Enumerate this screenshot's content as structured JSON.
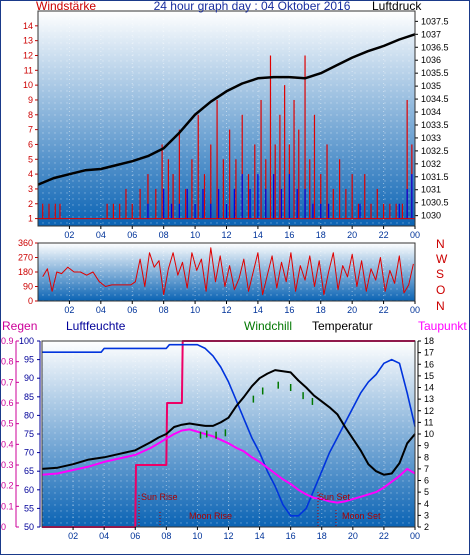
{
  "header": {
    "left_label": "Windstärke",
    "title": "24 hour graph day : 04 Oktober 2016",
    "right_label": "Luftdruck"
  },
  "legend": {
    "regen": "Regen",
    "luftfeuchte": "Luftfeuchte",
    "windchill": "Windchill",
    "temperatur": "Temperatur",
    "taupunkt": "Taupunkt"
  },
  "compass": [
    "N",
    "W",
    "S",
    "O",
    "N"
  ],
  "events": {
    "sun_rise": "Sun Rise",
    "moon_rise": "Moon Rise",
    "sun_set": "Sun Set",
    "moon_set": "Moon Set"
  },
  "colors": {
    "panel_top": "#ffffff",
    "panel_bottom": "#0a63b4",
    "wind_red": "#e00000",
    "gust_blue": "#0000dd",
    "pressure": "#000000",
    "humidity": "#0033dd",
    "windchill": "#007700",
    "temperature": "#000000",
    "dewpoint": "#ff00ff",
    "rain": "#ee0066",
    "left_axis_red": "#cc0000",
    "left_axis_blue": "#000099",
    "right_axis_pink": "#cc0099"
  },
  "chart_data": [
    {
      "type": "line",
      "title": "24 hour graph day : 04 Oktober 2016",
      "x_ticks": [
        "02",
        "04",
        "06",
        "08",
        "10",
        "12",
        "14",
        "16",
        "18",
        "20",
        "22",
        "00"
      ],
      "xlim": [
        0,
        24
      ],
      "y_left_label": "Windstärke",
      "y_left_ticks": [
        1,
        2,
        3,
        4,
        5,
        6,
        7,
        8,
        9,
        10,
        11,
        12,
        13,
        14
      ],
      "ylim_left": [
        0.5,
        15
      ],
      "y_right_label": "Luftdruck",
      "y_right_ticks": [
        1030,
        1030.5,
        1031,
        1031.5,
        1032,
        1032.5,
        1033,
        1033.5,
        1034,
        1034.5,
        1035,
        1035.5,
        1036,
        1036.5,
        1037,
        1037.5
      ],
      "ylim_right": [
        1029.6,
        1037.9
      ],
      "series": [
        {
          "name": "Luftdruck",
          "axis": "right",
          "x": [
            0,
            1,
            2,
            3,
            4,
            5,
            6,
            7,
            8,
            9,
            10,
            11,
            12,
            13,
            14,
            15,
            16,
            17,
            18,
            19,
            20,
            21,
            22,
            23,
            24
          ],
          "y": [
            1031.2,
            1031.45,
            1031.6,
            1031.75,
            1031.8,
            1031.95,
            1032.1,
            1032.3,
            1032.6,
            1033.2,
            1033.9,
            1034.4,
            1034.8,
            1035.1,
            1035.3,
            1035.35,
            1035.35,
            1035.3,
            1035.5,
            1035.8,
            1036.1,
            1036.35,
            1036.55,
            1036.8,
            1037.0
          ]
        },
        {
          "name": "Windstärke",
          "axis": "left",
          "x": [
            0.3,
            0.7,
            1.1,
            1.4,
            4.4,
            4.8,
            5.2,
            5.6,
            6.0,
            6.5,
            7.0,
            7.5,
            7.9,
            8.3,
            8.6,
            9.0,
            9.4,
            9.8,
            10.2,
            10.6,
            11.0,
            11.4,
            11.8,
            12.2,
            12.6,
            13.0,
            13.4,
            13.8,
            14.2,
            14.5,
            14.8,
            15.1,
            15.4,
            15.7,
            16.0,
            16.3,
            16.6,
            17.0,
            17.3,
            17.6,
            18.0,
            18.4,
            18.8,
            19.2,
            19.6,
            20.0,
            20.4,
            20.8,
            21.2,
            21.6,
            22.0,
            22.4,
            22.8,
            23.2,
            23.5,
            23.8
          ],
          "y": [
            2,
            2,
            2,
            2,
            2,
            2,
            2,
            3,
            2,
            3,
            4,
            3,
            6,
            5,
            4,
            7,
            3,
            5,
            8,
            4,
            6,
            9,
            5,
            7,
            5,
            8,
            4,
            6,
            9,
            5,
            12,
            6,
            8,
            10,
            6,
            9,
            7,
            12,
            5,
            8,
            4,
            6,
            3,
            5,
            3,
            4,
            2,
            4,
            2,
            3,
            2,
            2,
            2,
            2,
            9,
            6
          ]
        },
        {
          "name": "Böen",
          "axis": "left",
          "x": [
            6.0,
            6.6,
            7.0,
            7.5,
            8.0,
            8.5,
            9.0,
            9.5,
            10.0,
            10.5,
            11.0,
            11.5,
            12.0,
            12.5,
            13.0,
            13.5,
            14.0,
            14.5,
            15.0,
            15.5,
            16.0,
            16.5,
            17.0,
            17.5,
            18.0,
            18.5,
            19.0,
            19.5,
            20.0,
            20.5,
            21.0,
            21.5,
            22.0,
            22.5,
            23.0,
            23.5,
            23.8
          ],
          "y": [
            1,
            1,
            2,
            1,
            3,
            2,
            2,
            3,
            2,
            3,
            2,
            3,
            2,
            3,
            4,
            3,
            4,
            3,
            4,
            3,
            4,
            3,
            3,
            2,
            2,
            2,
            1,
            1,
            1,
            2,
            1,
            1,
            1,
            1,
            2,
            3,
            4
          ]
        }
      ]
    },
    {
      "type": "scatter",
      "title": "",
      "x_ticks": [
        "02",
        "04",
        "06",
        "08",
        "10",
        "12",
        "14",
        "16",
        "18",
        "20",
        "22",
        "00"
      ],
      "xlim": [
        0,
        24
      ],
      "y_ticks": [
        0,
        90,
        180,
        270,
        360
      ],
      "ylim": [
        0,
        360
      ],
      "y_right_labels": [
        "N",
        "W",
        "S",
        "O",
        "N"
      ],
      "series": [
        {
          "name": "Windrichtung",
          "x": [
            0.3,
            0.6,
            0.9,
            1.2,
            1.5,
            1.9,
            2.3,
            2.7,
            3.1,
            3.5,
            3.9,
            4.3,
            4.7,
            5.1,
            5.5,
            5.9,
            6.2,
            6.5,
            6.8,
            7.1,
            7.4,
            7.7,
            8.0,
            8.3,
            8.6,
            8.9,
            9.2,
            9.5,
            9.8,
            10.1,
            10.4,
            10.7,
            11.0,
            11.3,
            11.6,
            11.9,
            12.2,
            12.5,
            12.8,
            13.1,
            13.4,
            13.7,
            14.0,
            14.3,
            14.6,
            14.9,
            15.2,
            15.5,
            15.8,
            16.1,
            16.4,
            16.7,
            17.0,
            17.3,
            17.6,
            17.9,
            18.2,
            18.5,
            18.8,
            19.1,
            19.4,
            19.7,
            20.0,
            20.3,
            20.6,
            20.9,
            21.2,
            21.5,
            21.8,
            22.1,
            22.4,
            22.7,
            23.0,
            23.3,
            23.6,
            23.9
          ],
          "y": [
            150,
            200,
            60,
            180,
            170,
            210,
            180,
            180,
            160,
            180,
            120,
            90,
            100,
            100,
            100,
            100,
            120,
            260,
            90,
            300,
            210,
            250,
            40,
            200,
            300,
            160,
            240,
            80,
            300,
            190,
            260,
            60,
            330,
            120,
            280,
            90,
            220,
            70,
            140,
            260,
            60,
            180,
            300,
            40,
            160,
            280,
            80,
            240,
            120,
            300,
            60,
            220,
            130,
            280,
            90,
            250,
            40,
            180,
            300,
            70,
            220,
            150,
            290,
            90,
            250,
            60,
            200,
            130,
            270,
            60,
            190,
            110,
            280,
            50,
            100,
            230
          ]
        }
      ]
    },
    {
      "type": "line",
      "title": "",
      "x_ticks": [
        "02",
        "04",
        "06",
        "08",
        "10",
        "12",
        "14",
        "16",
        "18",
        "20",
        "22",
        "00"
      ],
      "xlim": [
        0,
        24
      ],
      "y_left_ticks": [
        50,
        55,
        60,
        65,
        70,
        75,
        80,
        85,
        90,
        95,
        100
      ],
      "ylim_left": [
        50,
        100
      ],
      "y_left2_ticks": [
        0,
        0.1,
        0.2,
        0.3,
        0.4,
        0.5,
        0.6,
        0.7,
        0.8,
        0.9
      ],
      "ylim_left2": [
        0,
        0.9
      ],
      "y_right_ticks": [
        2,
        3,
        4,
        5,
        6,
        7,
        8,
        9,
        10,
        11,
        12,
        13,
        14,
        15,
        16,
        17,
        18
      ],
      "ylim_right": [
        2,
        18
      ],
      "series": [
        {
          "name": "Regen",
          "axis": "left2",
          "x": [
            0,
            6.0,
            6.05,
            8.0,
            8.05,
            9.0,
            9.05,
            24
          ],
          "y": [
            0,
            0,
            0.3,
            0.3,
            0.6,
            0.6,
            0.9,
            0.9
          ]
        },
        {
          "name": "Luftfeuchte",
          "axis": "left",
          "x": [
            0,
            2.0,
            3.8,
            4.0,
            8.0,
            8.2,
            10.0,
            10.5,
            11.0,
            11.5,
            12.0,
            12.5,
            13.0,
            13.5,
            14.0,
            14.5,
            15.0,
            15.5,
            16.0,
            16.5,
            17.0,
            17.5,
            18.0,
            18.5,
            19.0,
            19.5,
            20.0,
            20.5,
            21.0,
            21.5,
            22.0,
            22.5,
            23.0,
            23.5,
            24.0
          ],
          "y": [
            97,
            97,
            97,
            98,
            98,
            99,
            99,
            98,
            96,
            93,
            89,
            84,
            79,
            74,
            70,
            65,
            61,
            56,
            53,
            53,
            55,
            60,
            65,
            70,
            74,
            78,
            82,
            86,
            89,
            91,
            94,
            95,
            94,
            86,
            77
          ]
        },
        {
          "name": "Temperatur",
          "axis": "right",
          "x": [
            0,
            1.0,
            2.0,
            3.0,
            4.0,
            5.0,
            6.0,
            7.0,
            7.5,
            8.0,
            8.5,
            9.0,
            9.5,
            10.0,
            10.5,
            11.0,
            11.5,
            12.0,
            12.5,
            13.0,
            13.5,
            14.0,
            14.5,
            15.0,
            15.5,
            16.0,
            16.5,
            17.0,
            17.5,
            18.0,
            18.5,
            19.0,
            19.5,
            20.0,
            20.5,
            21.0,
            21.5,
            22.0,
            22.5,
            23.0,
            23.5,
            24.0
          ],
          "y": [
            7.0,
            7.1,
            7.4,
            7.8,
            8.0,
            8.3,
            8.6,
            9.3,
            9.7,
            10.0,
            10.6,
            10.8,
            10.9,
            10.8,
            10.7,
            10.7,
            11.0,
            11.4,
            12.4,
            13.2,
            14.1,
            14.8,
            15.2,
            15.5,
            15.4,
            15.3,
            14.6,
            14.0,
            13.3,
            12.8,
            12.3,
            11.7,
            10.6,
            9.6,
            8.6,
            7.4,
            6.8,
            6.5,
            6.6,
            7.5,
            9.2,
            10.0
          ]
        },
        {
          "name": "Windchill",
          "axis": "right",
          "x": [
            10.2,
            10.6,
            11.2,
            11.8,
            13.6,
            14.2,
            15.2,
            16.0,
            16.8,
            17.4
          ],
          "y": [
            10.2,
            10.3,
            10.2,
            10.4,
            13.3,
            14.0,
            14.5,
            14.3,
            13.6,
            13.1
          ]
        },
        {
          "name": "Taupunkt",
          "axis": "right",
          "x": [
            0,
            1.0,
            2.0,
            3.0,
            4.0,
            5.0,
            6.0,
            7.0,
            7.5,
            8.0,
            8.5,
            9.0,
            9.5,
            10.0,
            10.5,
            11.0,
            11.5,
            12.0,
            12.5,
            13.0,
            13.5,
            14.0,
            14.5,
            15.0,
            15.5,
            16.0,
            16.5,
            17.0,
            17.5,
            18.0,
            18.5,
            19.0,
            19.5,
            20.0,
            20.5,
            21.0,
            21.5,
            22.0,
            22.5,
            23.0,
            23.5,
            24.0
          ],
          "y": [
            6.5,
            6.6,
            6.9,
            7.2,
            7.6,
            7.9,
            8.2,
            8.8,
            9.2,
            9.6,
            10.0,
            10.3,
            10.4,
            10.2,
            10.0,
            9.8,
            9.5,
            9.2,
            8.8,
            8.5,
            8.0,
            7.6,
            7.1,
            6.6,
            6.1,
            5.7,
            5.2,
            4.8,
            4.5,
            4.4,
            4.2,
            4.1,
            4.2,
            4.4,
            4.6,
            4.8,
            5.0,
            5.4,
            5.9,
            6.4,
            7.0,
            6.6
          ]
        }
      ]
    }
  ]
}
